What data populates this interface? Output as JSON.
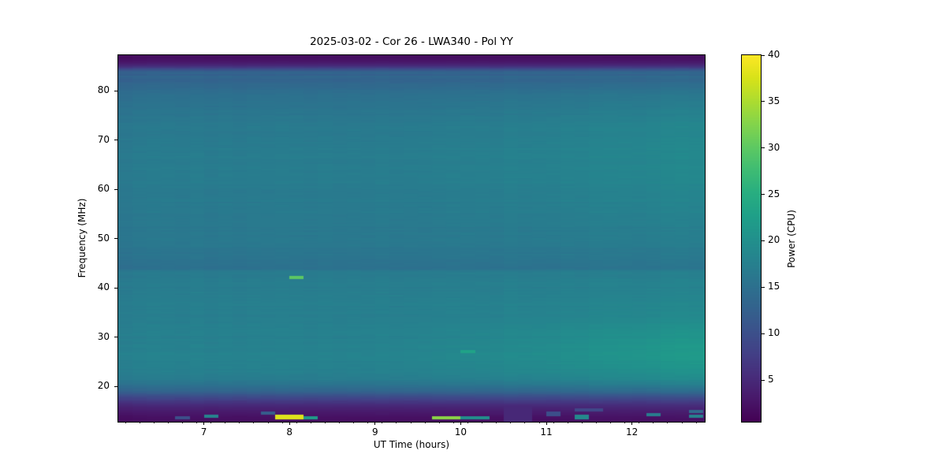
{
  "chart_data": {
    "type": "heatmap",
    "title": "2025-03-02 - Cor 26 - LWA340 - Pol YY",
    "xlabel": "UT Time (hours)",
    "ylabel": "Frequency (MHz)",
    "x_range": [
      6.0,
      12.85
    ],
    "y_range": [
      12.8,
      87.2
    ],
    "x_ticks": [
      7,
      8,
      9,
      10,
      11,
      12
    ],
    "x_minor_tick_start": 6.0833,
    "x_minor_tick_step": 0.16667,
    "y_ticks": [
      20,
      30,
      40,
      50,
      60,
      70,
      80
    ],
    "time_bin_hours": 0.16667,
    "freq_bin_mhz": 0.32,
    "colorbar": {
      "label": "Power (CPU)",
      "ticks": [
        5,
        10,
        15,
        20,
        25,
        30,
        35,
        40
      ],
      "vmin": 0.5,
      "vmax": 40,
      "colormap": "viridis"
    },
    "colormap_stops": [
      "#440154",
      "#48186a",
      "#472d7b",
      "#424086",
      "#3b528b",
      "#33638d",
      "#2c728e",
      "#26828e",
      "#21918c",
      "#1fa088",
      "#28ae80",
      "#3fbc73",
      "#5ec962",
      "#84d44b",
      "#addc30",
      "#d8e219",
      "#fde725"
    ],
    "baseline_power_by_freq": [
      [
        12.8,
        1.8
      ],
      [
        13.4,
        2.0
      ],
      [
        14.0,
        2.4
      ],
      [
        14.6,
        3.0
      ],
      [
        15.2,
        3.6
      ],
      [
        16.0,
        4.8
      ],
      [
        16.6,
        6.0
      ],
      [
        17.2,
        7.6
      ],
      [
        18.0,
        10.0
      ],
      [
        18.6,
        12.0
      ],
      [
        19.4,
        13.8
      ],
      [
        20.0,
        15.0
      ],
      [
        21.0,
        16.4
      ],
      [
        22.0,
        17.2
      ],
      [
        23.0,
        17.4
      ],
      [
        24.0,
        17.6
      ],
      [
        26.0,
        17.8
      ],
      [
        28.0,
        17.7
      ],
      [
        30.0,
        17.5
      ],
      [
        32.0,
        17.4
      ],
      [
        34.0,
        17.3
      ],
      [
        36.0,
        17.2
      ],
      [
        38.0,
        17.1
      ],
      [
        40.0,
        17.0
      ],
      [
        42.0,
        16.9
      ],
      [
        43.4,
        16.8
      ],
      [
        43.6,
        15.4
      ],
      [
        44.5,
        15.2
      ],
      [
        45.5,
        15.4
      ],
      [
        46.5,
        15.8
      ],
      [
        48.0,
        16.0
      ],
      [
        50.0,
        16.2
      ],
      [
        52.0,
        16.3
      ],
      [
        54.0,
        16.4
      ],
      [
        56.0,
        16.5
      ],
      [
        58.0,
        16.6
      ],
      [
        60.0,
        16.7
      ],
      [
        62.0,
        16.8
      ],
      [
        64.0,
        16.9
      ],
      [
        66.0,
        16.9
      ],
      [
        68.0,
        16.8
      ],
      [
        70.0,
        16.7
      ],
      [
        72.0,
        16.5
      ],
      [
        74.0,
        16.2
      ],
      [
        76.0,
        15.8
      ],
      [
        78.0,
        15.3
      ],
      [
        79.0,
        15.0
      ],
      [
        80.0,
        14.6
      ],
      [
        81.0,
        13.9
      ],
      [
        82.0,
        13.0
      ],
      [
        82.4,
        12.5
      ],
      [
        82.8,
        14.0
      ],
      [
        83.2,
        12.5
      ],
      [
        83.6,
        13.5
      ],
      [
        84.0,
        12.0
      ],
      [
        84.4,
        9.0
      ],
      [
        84.8,
        6.5
      ],
      [
        85.2,
        4.5
      ],
      [
        85.8,
        3.0
      ],
      [
        86.4,
        2.2
      ],
      [
        87.2,
        1.6
      ]
    ],
    "right_side_gain_by_freq": [
      [
        12.8,
        0.2
      ],
      [
        14,
        0.3
      ],
      [
        16,
        0.5
      ],
      [
        18,
        0.9
      ],
      [
        20,
        1.8
      ],
      [
        22,
        2.8
      ],
      [
        24,
        3.6
      ],
      [
        26,
        4.0
      ],
      [
        27,
        4.2
      ],
      [
        28,
        4.1
      ],
      [
        30,
        3.6
      ],
      [
        32,
        2.8
      ],
      [
        34,
        2.0
      ],
      [
        36,
        1.5
      ],
      [
        38,
        1.2
      ],
      [
        40,
        1.0
      ],
      [
        43,
        0.8
      ],
      [
        45,
        0.7
      ],
      [
        48,
        0.8
      ],
      [
        52,
        1.1
      ],
      [
        56,
        1.5
      ],
      [
        60,
        1.8
      ],
      [
        64,
        2.0
      ],
      [
        68,
        2.1
      ],
      [
        72,
        2.1
      ],
      [
        76,
        1.8
      ],
      [
        80,
        1.2
      ],
      [
        82,
        0.8
      ],
      [
        84,
        0.4
      ],
      [
        86,
        0.1
      ],
      [
        87.2,
        0
      ]
    ],
    "gain_ramp": {
      "t_start": 8.5,
      "t_full": 12.85,
      "exponent": 1.5
    },
    "features": [
      {
        "name": "green-dash-42mhz",
        "t": [
          7.96,
          8.14
        ],
        "f": [
          41.7,
          42.2
        ],
        "power": 30
      },
      {
        "name": "yellow-burst-13.6mhz",
        "t": [
          7.79,
          8.12
        ],
        "f": [
          13.3,
          14.0
        ],
        "power": 38
      },
      {
        "name": "teal-dash-after-burst",
        "t": [
          8.12,
          8.31
        ],
        "f": [
          13.3,
          13.9
        ],
        "power": 22
      },
      {
        "name": "teal-dash-7.0h",
        "t": [
          6.96,
          7.17
        ],
        "f": [
          13.8,
          14.3
        ],
        "power": 18
      },
      {
        "name": "faint-dash-6.7h",
        "t": [
          6.62,
          6.81
        ],
        "f": [
          13.5,
          13.95
        ],
        "power": 10
      },
      {
        "name": "slate-dash-7.7h",
        "t": [
          7.62,
          7.81
        ],
        "f": [
          14.35,
          14.9
        ],
        "power": 12
      },
      {
        "name": "green-dash-9.8h",
        "t": [
          9.74,
          9.94
        ],
        "f": [
          13.3,
          13.95
        ],
        "power": 33
      },
      {
        "name": "teal-dash-10.2h",
        "t": [
          10.07,
          10.26
        ],
        "f": [
          13.4,
          13.95
        ],
        "power": 20
      },
      {
        "name": "purple-column-10.6h",
        "t": [
          10.54,
          10.79
        ],
        "f": [
          12.8,
          15.9
        ],
        "power": 4.8
      },
      {
        "name": "faint-dash-11.1h",
        "t": [
          11.05,
          11.23
        ],
        "f": [
          14.15,
          14.65
        ],
        "power": 10
      },
      {
        "name": "slate-line-11.5h",
        "t": [
          11.39,
          11.73
        ],
        "f": [
          14.85,
          15.4
        ],
        "power": 9
      },
      {
        "name": "teal-dash-11.5h",
        "t": [
          11.39,
          11.57
        ],
        "f": [
          13.45,
          14.0
        ],
        "power": 19
      },
      {
        "name": "teal-dash-12.3h",
        "t": [
          12.19,
          12.39
        ],
        "f": [
          13.95,
          14.5
        ],
        "power": 17
      },
      {
        "name": "slate-line-12.75h",
        "t": [
          12.67,
          12.85
        ],
        "f": [
          14.65,
          15.2
        ],
        "power": 14
      },
      {
        "name": "teal-dash-12.75h",
        "t": [
          12.67,
          12.85
        ],
        "f": [
          13.65,
          14.2
        ],
        "power": 18
      },
      {
        "name": "teal-dash-27mhz",
        "t": [
          9.92,
          10.09
        ],
        "f": [
          26.65,
          27.15
        ],
        "power": 23
      }
    ]
  }
}
